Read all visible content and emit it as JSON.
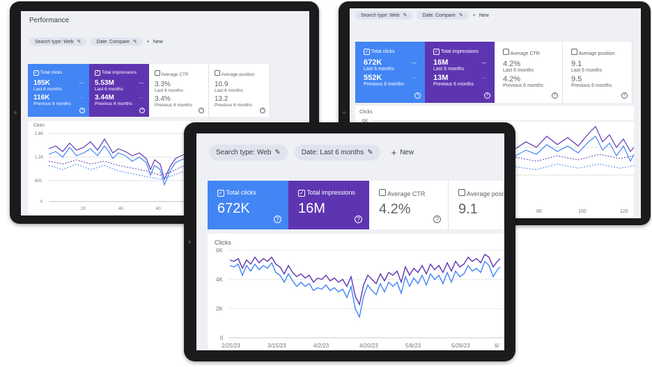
{
  "left_tablet": {
    "title": "Performance",
    "chips": [
      "Search type: Web",
      "Date: Compare"
    ],
    "new_label": "New",
    "cards": [
      {
        "label": "Total clicks",
        "v1": "185K",
        "p1": "Last 6 months",
        "v2": "116K",
        "p2": "Previous 6 months",
        "style": "blue"
      },
      {
        "label": "Total impressions",
        "v1": "5.53M",
        "p1": "Last 6 months",
        "v2": "3.44M",
        "p2": "Previous 6 months",
        "style": "purple"
      },
      {
        "label": "Average CTR",
        "v1": "3.3%",
        "p1": "Last 6 months",
        "v2": "3.4%",
        "p2": "Previous 6 months",
        "style": "white"
      },
      {
        "label": "Average position",
        "v1": "10.9",
        "p1": "Last 6 months",
        "v2": "13.2",
        "p2": "Previous 6 months",
        "style": "white"
      }
    ],
    "chart_label": "Clicks",
    "y_ticks": [
      "1.8K",
      "1.2K",
      "600",
      "0"
    ],
    "x_ticks": [
      "20",
      "40",
      "60"
    ]
  },
  "right_tablet": {
    "chips": [
      "Search type: Web",
      "Date: Compare"
    ],
    "new_label": "New",
    "cards": [
      {
        "label": "Total clicks",
        "v1": "672K",
        "p1": "Last 6 months",
        "v2": "552K",
        "p2": "Previous 6 months",
        "style": "blue"
      },
      {
        "label": "Total impressions",
        "v1": "16M",
        "p1": "Last 6 months",
        "v2": "13M",
        "p2": "Previous 6 months",
        "style": "purple"
      },
      {
        "label": "Average CTR",
        "v1": "4.2%",
        "p1": "Last 6 months",
        "v2": "4.2%",
        "p2": "Previous 6 months",
        "style": "white"
      },
      {
        "label": "Average position",
        "v1": "9.1",
        "p1": "Last 6 months",
        "v2": "9.5",
        "p2": "Previous 6 months",
        "style": "white"
      }
    ],
    "chart_label": "Clicks",
    "y_ticks": [
      "6K"
    ],
    "x_ticks": [
      "80",
      "100",
      "120"
    ]
  },
  "center_tablet": {
    "chips": [
      "Search type: Web",
      "Date: Last 6 months"
    ],
    "new_label": "New",
    "cards": [
      {
        "label": "Total clicks",
        "v1": "672K",
        "style": "blue"
      },
      {
        "label": "Total impressions",
        "v1": "16M",
        "style": "purple"
      },
      {
        "label": "Average CTR",
        "v1": "4.2%",
        "style": "white"
      },
      {
        "label": "Average position",
        "v1": "9.1",
        "style": "white"
      }
    ],
    "chart_label": "Clicks",
    "y_ticks": [
      "6K",
      "4K",
      "2K",
      "0"
    ],
    "x_ticks": [
      "2/25/23",
      "3/15/23",
      "4/2/23",
      "4/20/23",
      "5/8/23",
      "5/26/23",
      "6/"
    ]
  },
  "colors": {
    "clicks": "#4285f4",
    "impressions": "#5e35b1",
    "bg": "#eef0f4"
  }
}
